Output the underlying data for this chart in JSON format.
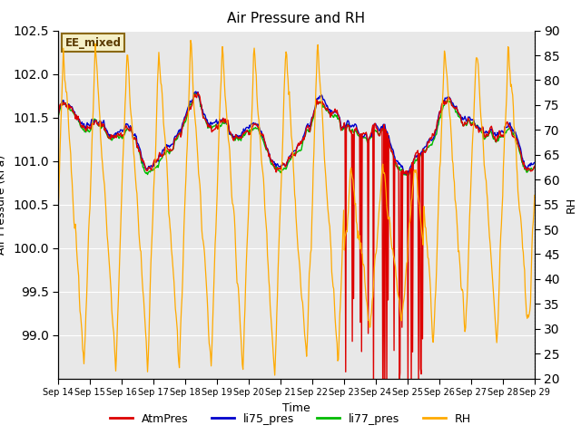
{
  "title": "Air Pressure and RH",
  "xlabel": "Time",
  "ylabel_left": "Air Pressure (kPa)",
  "ylabel_right": "RH",
  "annotation": "EE_mixed",
  "ylim_left": [
    98.5,
    102.5
  ],
  "ylim_right": [
    20,
    90
  ],
  "yticks_left": [
    99.0,
    99.5,
    100.0,
    100.5,
    101.0,
    101.5,
    102.0,
    102.5
  ],
  "yticks_right": [
    20,
    25,
    30,
    35,
    40,
    45,
    50,
    55,
    60,
    65,
    70,
    75,
    80,
    85,
    90
  ],
  "xtick_labels": [
    "Sep 14",
    "Sep 15",
    "Sep 16",
    "Sep 17",
    "Sep 18",
    "Sep 19",
    "Sep 20",
    "Sep 21",
    "Sep 22",
    "Sep 23",
    "Sep 24",
    "Sep 25",
    "Sep 26",
    "Sep 27",
    "Sep 28",
    "Sep 29"
  ],
  "colors": {
    "AtmPres": "#dd0000",
    "li75_pres": "#0000cc",
    "li77_pres": "#00bb00",
    "RH": "#ffaa00",
    "background": "#e8e8e8",
    "annotation_bg": "#f5f0c8",
    "annotation_border": "#8b6914"
  },
  "figsize": [
    6.4,
    4.8
  ],
  "dpi": 100
}
